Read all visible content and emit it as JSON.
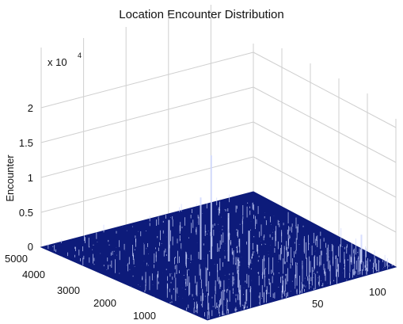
{
  "chart_data": {
    "type": "surface",
    "title": "Location Encounter Distribution",
    "zlabel": "Encounter",
    "zscale_label": "x 10",
    "zscale_exponent": "4",
    "zlim": [
      0,
      22000
    ],
    "zticks": [
      "0",
      "0.5",
      "1",
      "1.5",
      "2"
    ],
    "x_ticks": [
      "50",
      "100"
    ],
    "xlim": [
      0,
      130
    ],
    "y_ticks": [
      "1000",
      "2000",
      "3000",
      "4000",
      "5000"
    ],
    "ylim": [
      0,
      5000
    ],
    "grid": true,
    "surface_color": "#0d1b7a",
    "spike_color": "#d0d8ff",
    "peaks": [
      {
        "x": 60,
        "y": 2500,
        "z": 15000
      },
      {
        "x": 55,
        "y": 2600,
        "z": 9000
      },
      {
        "x": 40,
        "y": 2900,
        "z": 6000
      },
      {
        "x": 65,
        "y": 2200,
        "z": 7000
      },
      {
        "x": 70,
        "y": 1800,
        "z": 5000
      },
      {
        "x": 120,
        "y": 600,
        "z": 4000
      }
    ]
  }
}
